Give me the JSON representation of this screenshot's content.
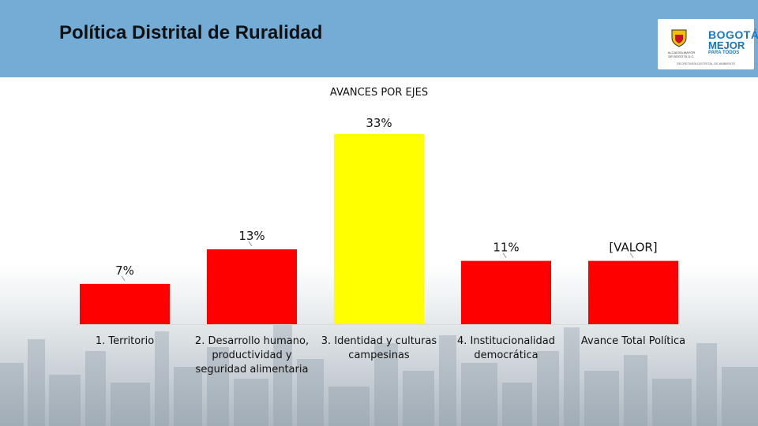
{
  "slide": {
    "title": "Política Distrital de Ruralidad"
  },
  "logo": {
    "line1": "BOGOTÁ",
    "line2": "MEJOR",
    "line3": "PARA TODOS",
    "org": "ALCALDÍA MAYOR DE BOGOTÁ D.C.",
    "foot": "SECRETARÍA DISTRITAL DE AMBIENTE",
    "brand_color": "#1a76bf"
  },
  "chart_data": {
    "type": "bar",
    "title": "AVANCES POR EJES",
    "categories": [
      [
        "1. Territorio"
      ],
      [
        "2. Desarrollo humano,",
        "productividad y",
        "seguridad alimentaria"
      ],
      [
        "3. Identidad y culturas",
        "campesinas"
      ],
      [
        "4. Institucionalidad",
        "democrática"
      ],
      [
        "Avance Total Política"
      ]
    ],
    "values": [
      7,
      13,
      33,
      11,
      11
    ],
    "data_labels": [
      "7%",
      "13%",
      "33%",
      "11%",
      "[VALOR]"
    ],
    "colors": [
      "#ff0000",
      "#ff0000",
      "#ffff00",
      "#ff0000",
      "#ff0000"
    ],
    "ylim": [
      0,
      36
    ],
    "grid": false,
    "legend": "none"
  }
}
